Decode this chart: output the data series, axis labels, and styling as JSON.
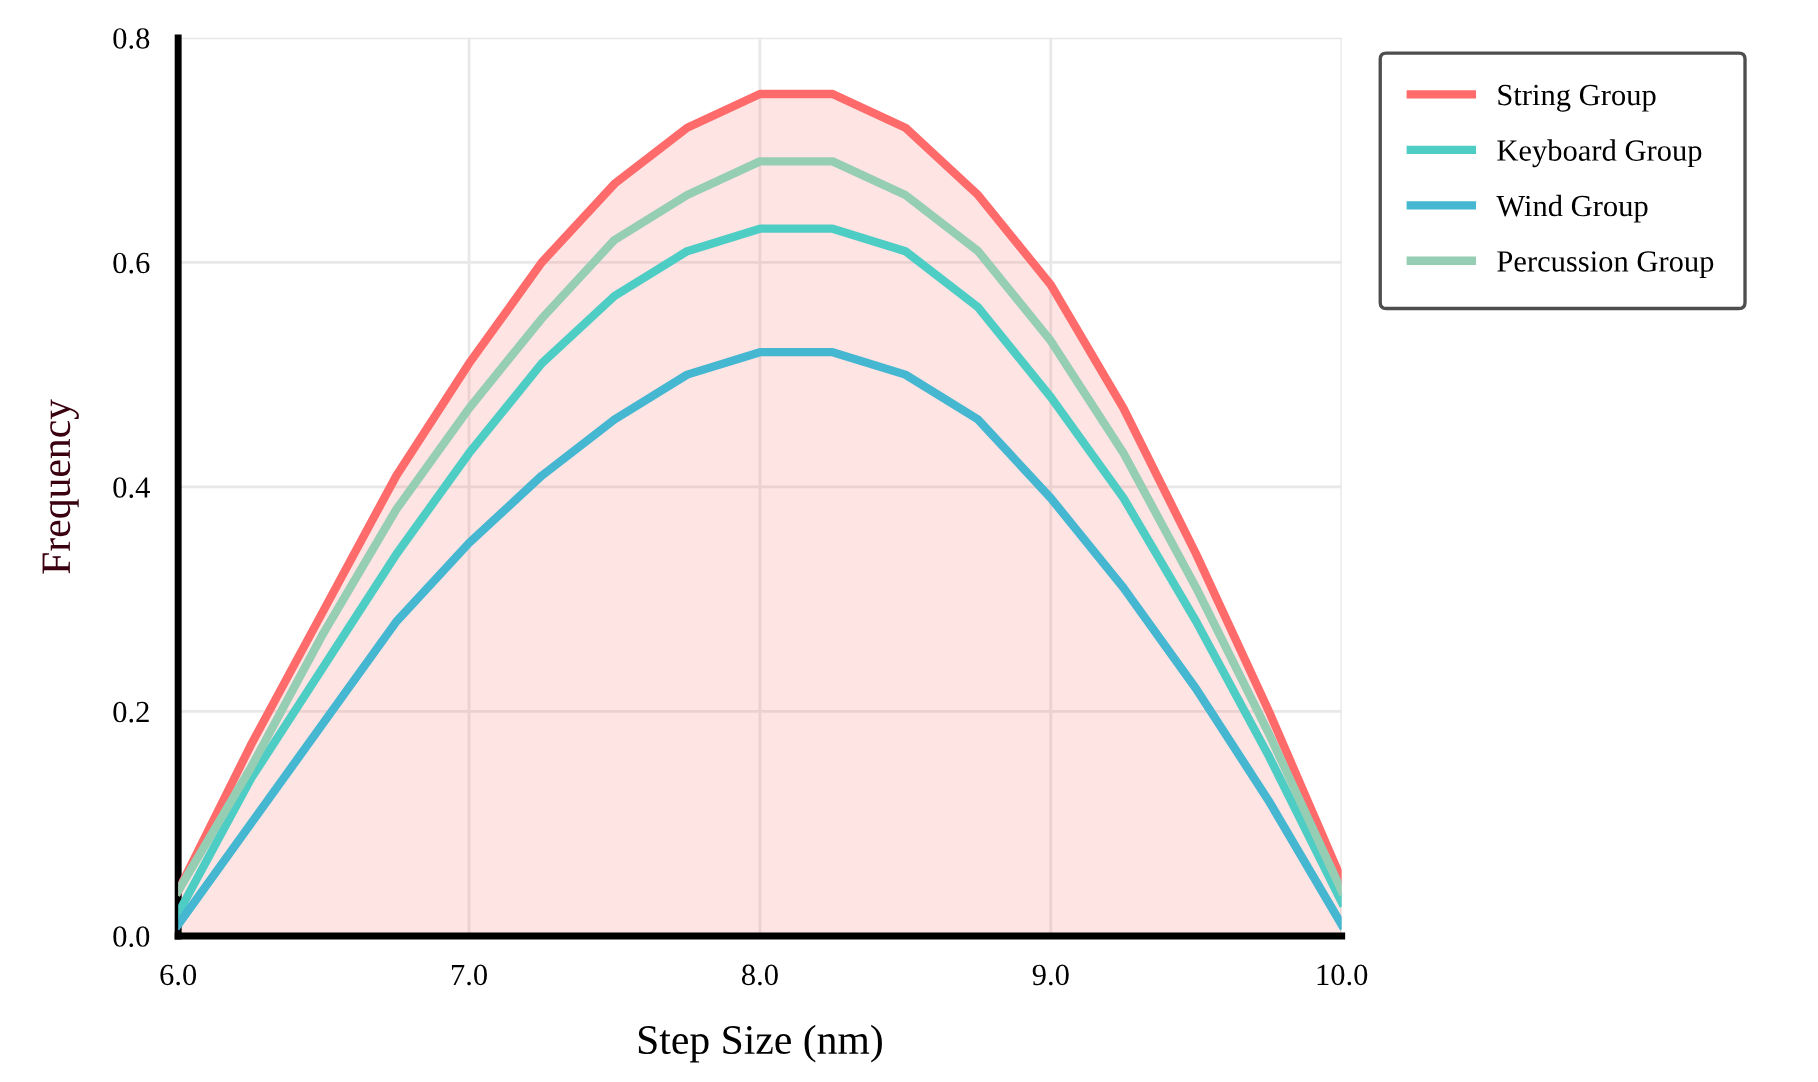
{
  "chart_data": {
    "type": "line",
    "xlabel": "Step Size (nm)",
    "ylabel": "Frequency",
    "x": [
      6.0,
      6.25,
      6.5,
      6.75,
      7.0,
      7.25,
      7.5,
      7.75,
      8.0,
      8.25,
      8.5,
      8.75,
      9.0,
      9.25,
      9.5,
      9.75,
      10.0
    ],
    "series": [
      {
        "name": "String Group",
        "type": "area",
        "color": "#ff6b6b",
        "values": [
          0.04,
          0.17,
          0.29,
          0.41,
          0.51,
          0.6,
          0.67,
          0.72,
          0.75,
          0.75,
          0.72,
          0.66,
          0.58,
          0.47,
          0.34,
          0.2,
          0.05
        ]
      },
      {
        "name": "Keyboard Group",
        "color": "#4ecdc4",
        "values": [
          0.02,
          0.14,
          0.24,
          0.34,
          0.43,
          0.51,
          0.57,
          0.61,
          0.63,
          0.63,
          0.61,
          0.56,
          0.48,
          0.39,
          0.28,
          0.16,
          0.03
        ]
      },
      {
        "name": "Wind Group",
        "color": "#45b7d1",
        "values": [
          0.01,
          0.1,
          0.19,
          0.28,
          0.35,
          0.41,
          0.46,
          0.5,
          0.52,
          0.52,
          0.5,
          0.46,
          0.39,
          0.31,
          0.22,
          0.12,
          0.01
        ]
      },
      {
        "name": "Percussion Group",
        "color": "#96ceb4",
        "values": [
          0.04,
          0.15,
          0.27,
          0.38,
          0.47,
          0.55,
          0.62,
          0.66,
          0.69,
          0.69,
          0.66,
          0.61,
          0.53,
          0.43,
          0.31,
          0.18,
          0.04
        ]
      }
    ],
    "xlim": [
      6,
      10
    ],
    "ylim": [
      0,
      0.8
    ],
    "xticks": [
      {
        "value": 6,
        "label": "6.0"
      },
      {
        "value": 7,
        "label": "7.0"
      },
      {
        "value": 8,
        "label": "8.0"
      },
      {
        "value": 9,
        "label": "9.0"
      },
      {
        "value": 10,
        "label": "10.0"
      }
    ],
    "yticks": [
      {
        "value": 0,
        "label": "0.0"
      },
      {
        "value": 0.2,
        "label": "0.2"
      },
      {
        "value": 0.4,
        "label": "0.4"
      },
      {
        "value": 0.6,
        "label": "0.6"
      },
      {
        "value": 0.8,
        "label": "0.8"
      }
    ],
    "grid": true,
    "legend": "top right",
    "marker": "none",
    "line_style": "solid"
  }
}
